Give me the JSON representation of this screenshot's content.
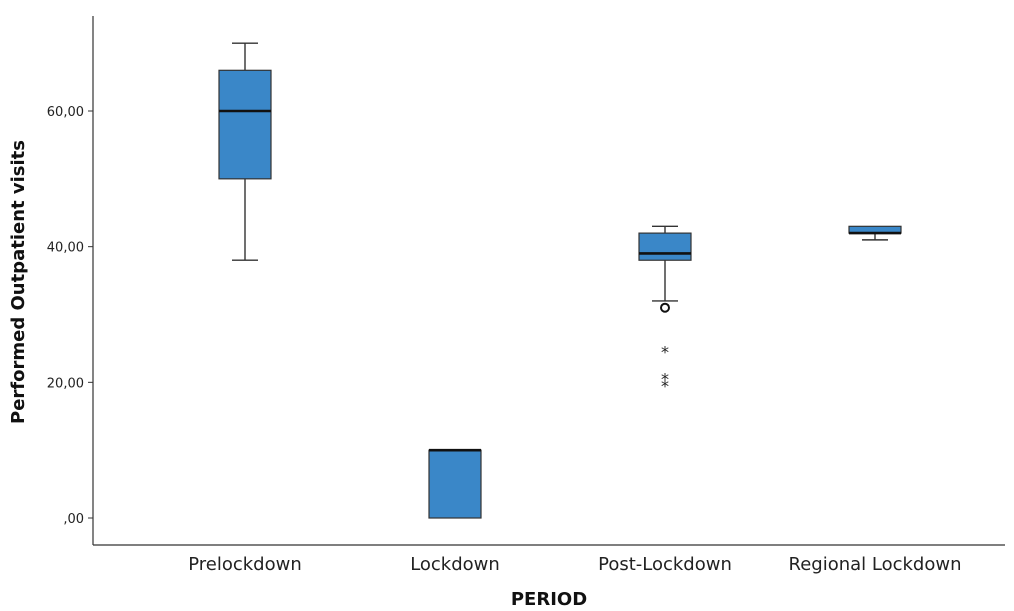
{
  "chart_data": {
    "type": "box",
    "title": "",
    "xlabel": "PERIOD",
    "ylabel": "Performed Outpatient visits",
    "yticks": [
      ",00",
      "20,00",
      "40,00",
      "60,00"
    ],
    "ytick_values": [
      0,
      20,
      40,
      60
    ],
    "ylim": [
      -4,
      73
    ],
    "grid": false,
    "box_color": "#3a87c8",
    "categories": [
      "Prelockdown",
      "Lockdown",
      "Post-Lockdown",
      "Regional Lockdown"
    ],
    "boxes": [
      {
        "category": "Prelockdown",
        "whisker_low": 38,
        "q1": 50,
        "median": 60,
        "q3": 66,
        "whisker_high": 70,
        "outliers": [],
        "extremes": []
      },
      {
        "category": "Lockdown",
        "whisker_low": 0,
        "q1": 0,
        "median": 10,
        "q3": 10,
        "whisker_high": 10,
        "outliers": [],
        "extremes": []
      },
      {
        "category": "Post-Lockdown",
        "whisker_low": 32,
        "q1": 38,
        "median": 39,
        "q3": 42,
        "whisker_high": 43,
        "outliers": [
          31
        ],
        "extremes": [
          25,
          21,
          20
        ]
      },
      {
        "category": "Regional Lockdown",
        "whisker_low": 41,
        "q1": 42,
        "median": 42,
        "q3": 43,
        "whisker_high": 43,
        "outliers": [],
        "extremes": []
      }
    ]
  }
}
